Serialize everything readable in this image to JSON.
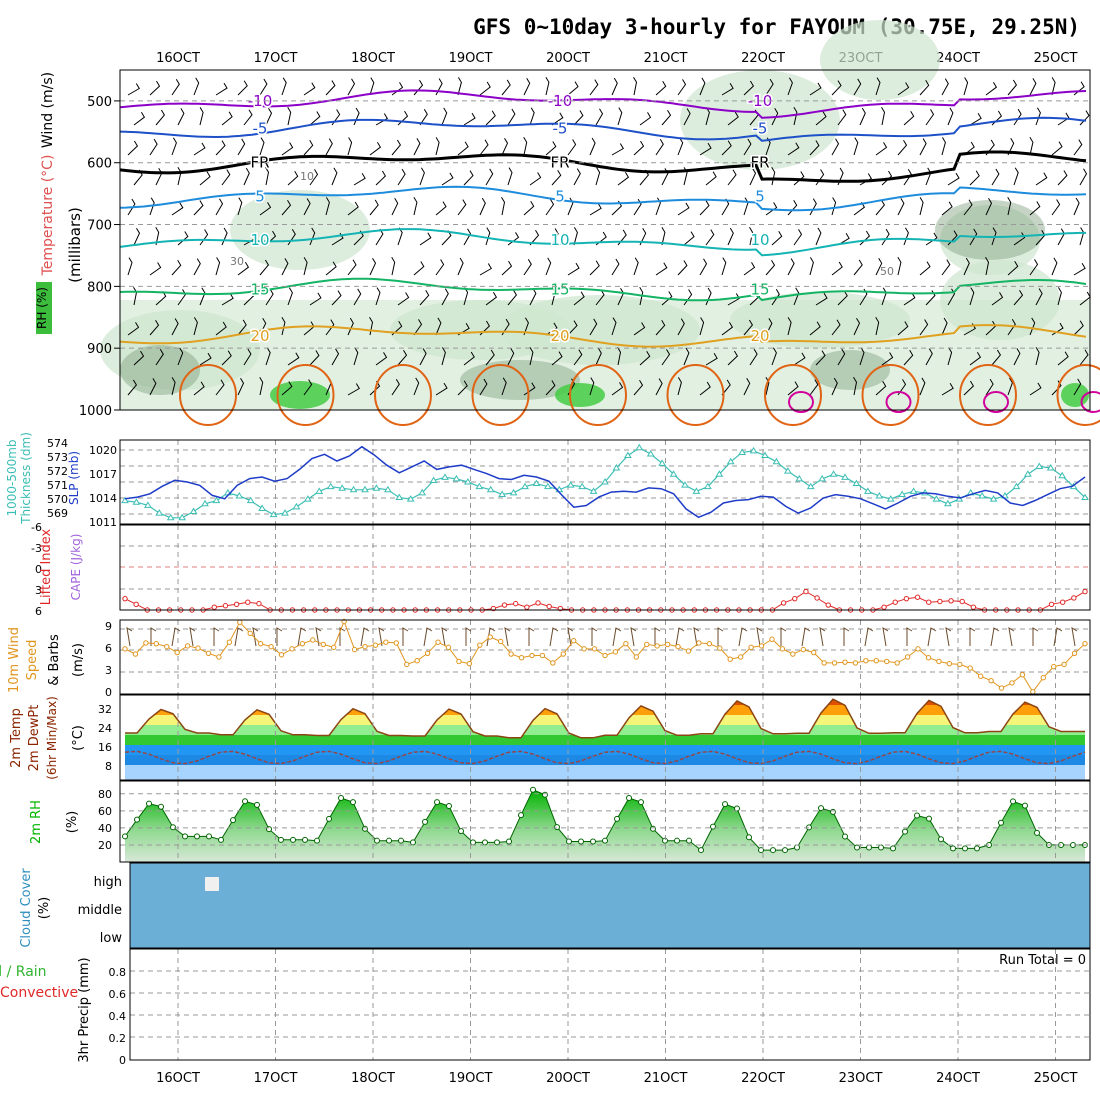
{
  "title": "GFS 0~10day 3-hourly for FAYOUM (30.75E, 29.25N)",
  "colors": {
    "frame": "#000000",
    "grid": "#999999",
    "rhFill": "#cfe6cf",
    "rhDark": "#7fa07f",
    "sfc": "#e0e0e0",
    "purple": "#8c00c8",
    "blue": "#1e50c8",
    "black": "#000000",
    "sky": "#1e8cdc",
    "teal": "#14b4b4",
    "green": "#14b464",
    "orange": "#e0a020",
    "orangeDark": "#e06414",
    "magenta": "#d2009b",
    "slp": "#1e3cc8",
    "thick": "#3cbeb4",
    "li": "#e02828",
    "cape": "#a064dc",
    "wind": "#e0961e",
    "temp": "#8b4513",
    "dew": "#964646",
    "rh2": "#00c800",
    "cloud": "#6baed6",
    "cloudSpot": "#f0f0f0",
    "precipLbl1": "#32b432",
    "precipLbl2": "#e02828"
  },
  "chart_data": [
    {
      "type": "contour-cross-section",
      "name": "upper-air",
      "xlabels": [
        "16OCT",
        "17OCT",
        "18OCT",
        "19OCT",
        "20OCT",
        "21OCT",
        "22OCT",
        "23OCT",
        "24OCT",
        "25OCT"
      ],
      "ylabel_left": [
        "RH (%)",
        "Temperature (°C)",
        "Wind (m/s)"
      ],
      "ylabel_axis": "(millibars)",
      "ylim": [
        1000,
        450
      ],
      "yticks": [
        500,
        600,
        700,
        800,
        900,
        1000
      ],
      "temperature_contours": [
        {
          "value": -10,
          "level": 500,
          "label": "-10",
          "color": "purple"
        },
        {
          "value": -5,
          "level": 545,
          "label": "-5",
          "color": "blue"
        },
        {
          "value": 0,
          "level": 600,
          "label": "FR",
          "color": "black"
        },
        {
          "value": 5,
          "level": 655,
          "label": "5",
          "color": "sky"
        },
        {
          "value": 10,
          "level": 725,
          "label": "10",
          "color": "teal"
        },
        {
          "value": 15,
          "level": 805,
          "label": "15",
          "color": "green"
        },
        {
          "value": 20,
          "level": 880,
          "label": "20",
          "color": "orange"
        }
      ],
      "rh_labels": [
        "10",
        "30",
        "50"
      ]
    },
    {
      "type": "line",
      "name": "slp-thickness",
      "ylabel_left": [
        "1000-500mb",
        "Thickness (dm)"
      ],
      "ylabel_right": "SLP (mb)",
      "thickness_ticks": [
        "574",
        "573",
        "572",
        "571",
        "570",
        "569"
      ],
      "slp_ticks": [
        "1020",
        "1017",
        "1014",
        "1011"
      ],
      "series": [
        {
          "name": "SLP (mb)",
          "ylim": [
            1011,
            1021
          ],
          "values": [
            1014.0,
            1014.2,
            1014.6,
            1015.5,
            1016.2,
            1016.0,
            1015.6,
            1014.4,
            1014.0,
            1015.6,
            1016.4,
            1016.6,
            1016.1,
            1016.4,
            1017.5,
            1018.8,
            1019.3,
            1018.5,
            1019.1,
            1020.2,
            1019.2,
            1018.0,
            1017.1,
            1017.8,
            1018.5,
            1017.5,
            1017.8,
            1018.0,
            1017.5,
            1017.0,
            1016.4,
            1016.3,
            1016.8,
            1016.6,
            1016.1,
            1014.5,
            1013.0,
            1013.2,
            1014.2,
            1014.8,
            1014.9,
            1014.8,
            1015.3,
            1015.2,
            1014.6,
            1012.8,
            1011.8,
            1012.4,
            1013.5,
            1013.8,
            1013.9,
            1014.3,
            1014.2,
            1013.1,
            1012.3,
            1012.9,
            1014.1,
            1014.5,
            1014.3,
            1014.0,
            1013.4,
            1012.8,
            1013.5,
            1014.3,
            1014.7,
            1014.6,
            1014.3,
            1014.1,
            1014.6,
            1015.0,
            1014.7,
            1013.5,
            1013.2,
            1013.8,
            1014.5,
            1015.2,
            1015.5,
            1016.6
          ]
        },
        {
          "name": "1000-500mb Thickness (dm)",
          "ylim": [
            568.8,
            574.2
          ],
          "values": [
            570.3,
            570.2,
            570.0,
            569.5,
            569.2,
            569.2,
            569.6,
            570.1,
            570.3,
            570.8,
            570.6,
            570.3,
            569.8,
            569.4,
            569.5,
            569.9,
            570.4,
            570.9,
            571.2,
            571.1,
            571.0,
            571.0,
            571.1,
            571.0,
            570.5,
            570.4,
            570.8,
            571.6,
            571.8,
            571.7,
            571.5,
            571.2,
            571.0,
            570.7,
            570.8,
            571.2,
            571.4,
            571.2,
            571.0,
            571.3,
            571.2,
            570.9,
            571.5,
            572.4,
            573.2,
            573.7,
            573.3,
            572.7,
            572.0,
            571.3,
            570.9,
            571.2,
            572.0,
            572.8,
            573.4,
            573.5,
            573.2,
            572.8,
            572.2,
            571.7,
            571.2,
            571.7,
            572.0,
            571.8,
            571.4,
            570.9,
            570.6,
            570.4,
            570.7,
            570.9,
            570.8,
            570.4,
            570.1,
            570.4,
            570.8,
            570.6,
            570.4,
            570.6,
            571.2,
            572.0,
            572.5,
            572.4,
            571.9,
            571.2,
            570.5
          ]
        }
      ]
    },
    {
      "type": "line",
      "name": "lifted-index",
      "ylabel": [
        "Lifted Index",
        "CAPE (J/kg)"
      ],
      "yticks": [
        "-6",
        "-3",
        "0",
        "3",
        "6"
      ],
      "ylim": [
        -6,
        6
      ],
      "values": [
        4.4,
        5.2,
        6.0,
        6.0,
        6.0,
        6.0,
        6.0,
        6.0,
        5.6,
        5.4,
        5.2,
        4.9,
        5.1,
        6.0,
        6.0,
        6.0,
        6.0,
        6.0,
        6.0,
        6.0,
        6.0,
        6.0,
        6.0,
        6.0,
        6.0,
        6.0,
        6.0,
        6.0,
        6.0,
        6.0,
        6.0,
        6.0,
        6.0,
        5.8,
        5.3,
        5.1,
        5.6,
        5.0,
        5.5,
        5.8,
        6.0,
        6.0,
        6.0,
        6.0,
        6.0,
        6.0,
        6.0,
        6.0,
        6.0,
        6.0,
        6.0,
        6.0,
        6.0,
        6.0,
        6.0,
        6.0,
        6.0,
        6.0,
        6.0,
        5.0,
        4.4,
        3.4,
        4.3,
        5.3,
        6.0,
        6.0,
        6.0,
        6.0,
        5.6,
        4.9,
        4.4,
        4.2,
        4.9,
        4.8,
        4.7,
        4.8,
        5.6,
        6.0,
        6.0,
        6.0,
        6.0,
        6.0,
        6.0,
        5.2,
        4.9,
        4.3,
        3.4
      ]
    },
    {
      "type": "line",
      "name": "10m-wind",
      "ylabel": [
        "10m Wind",
        "Speed",
        "& Barbs"
      ],
      "units": "(m/s)",
      "yticks": [
        "0",
        "3",
        "6",
        "9"
      ],
      "ylim": [
        0,
        10
      ],
      "values": [
        6.1,
        5.4,
        6.9,
        6.8,
        6.4,
        5.6,
        6.5,
        6.2,
        5.5,
        5.0,
        7.0,
        9.7,
        8.2,
        6.8,
        6.4,
        5.3,
        6.1,
        6.8,
        7.3,
        6.7,
        6.3,
        9.8,
        6.0,
        6.4,
        6.6,
        7.0,
        6.9,
        4.0,
        4.5,
        5.5,
        7.0,
        6.3,
        4.4,
        4.1,
        6.6,
        7.7,
        7.1,
        5.4,
        4.9,
        5.2,
        5.2,
        4.2,
        5.4,
        7.2,
        6.1,
        6.1,
        5.2,
        5.7,
        6.8,
        5.0,
        6.7,
        6.5,
        6.7,
        6.4,
        5.8,
        6.9,
        6.8,
        6.2,
        4.7,
        5.0,
        6.3,
        6.5,
        7.4,
        6.1,
        5.4,
        6.0,
        5.6,
        4.2,
        4.2,
        4.3,
        4.2,
        4.5,
        4.5,
        4.4,
        4.2,
        5.0,
        6.1,
        4.9,
        4.4,
        4.1,
        4.0,
        3.5,
        2.4,
        1.8,
        0.8,
        1.5,
        2.6,
        0.3,
        2.2,
        3.7,
        4.0,
        5.5,
        6.8
      ]
    },
    {
      "type": "area",
      "name": "2m-temperature",
      "ylabel": [
        "2m Temp",
        "2m DewPt",
        "(6hr Min/Max)"
      ],
      "units": "(°C)",
      "yticks": [
        "8",
        "16",
        "24",
        "32"
      ],
      "ylim": [
        2,
        36
      ],
      "temp_min": [
        20.8,
        20.1,
        19.8,
        19.6,
        18.9,
        19.9,
        20.5,
        20.7,
        20.9,
        21.4
      ],
      "temp_max": [
        30.3,
        30.2,
        30.6,
        30.5,
        30.7,
        31.8,
        33.8,
        34.5,
        34.0,
        33.3
      ],
      "dew_range": [
        7,
        17
      ]
    },
    {
      "type": "area",
      "name": "2m-rh",
      "ylabel": "2m RH",
      "units": "(%)",
      "yticks": [
        "20",
        "40",
        "60",
        "80"
      ],
      "ylim": [
        0,
        95
      ],
      "rh_min": [
        30,
        26,
        25,
        23,
        24,
        25,
        14,
        17,
        16,
        20
      ],
      "rh_max": [
        70,
        73,
        77,
        72,
        87,
        77,
        70,
        65,
        56,
        73
      ]
    },
    {
      "type": "heatmap",
      "name": "cloud-cover",
      "ylabel": [
        "Cloud Cover",
        "(%)"
      ],
      "levels": [
        "high",
        "middle",
        "low"
      ]
    },
    {
      "type": "bar",
      "name": "precip",
      "ylabel": [
        "3hr Precip (mm)"
      ],
      "legend_left": [
        "Total / Rain",
        "Convective"
      ],
      "annotation": "Run Total = 0",
      "yticks": [
        "0",
        "0.2",
        "0.4",
        "0.6",
        "0.8"
      ],
      "ylim": [
        0,
        1
      ],
      "values": []
    }
  ]
}
